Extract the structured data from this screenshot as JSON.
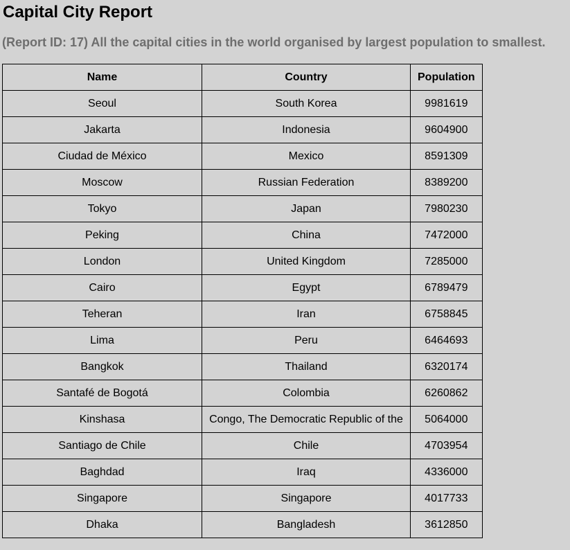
{
  "page": {
    "title": "Capital City Report",
    "subtitle": "(Report ID: 17) All the capital cities in the world organised by largest population to smallest."
  },
  "table": {
    "headers": [
      "Name",
      "Country",
      "Population"
    ],
    "rows": [
      [
        "Seoul",
        "South Korea",
        "9981619"
      ],
      [
        "Jakarta",
        "Indonesia",
        "9604900"
      ],
      [
        "Ciudad de México",
        "Mexico",
        "8591309"
      ],
      [
        "Moscow",
        "Russian Federation",
        "8389200"
      ],
      [
        "Tokyo",
        "Japan",
        "7980230"
      ],
      [
        "Peking",
        "China",
        "7472000"
      ],
      [
        "London",
        "United Kingdom",
        "7285000"
      ],
      [
        "Cairo",
        "Egypt",
        "6789479"
      ],
      [
        "Teheran",
        "Iran",
        "6758845"
      ],
      [
        "Lima",
        "Peru",
        "6464693"
      ],
      [
        "Bangkok",
        "Thailand",
        "6320174"
      ],
      [
        "Santafé de Bogotá",
        "Colombia",
        "6260862"
      ],
      [
        "Kinshasa",
        "Congo, The Democratic Republic of the",
        "5064000"
      ],
      [
        "Santiago de Chile",
        "Chile",
        "4703954"
      ],
      [
        "Baghdad",
        "Iraq",
        "4336000"
      ],
      [
        "Singapore",
        "Singapore",
        "4017733"
      ],
      [
        "Dhaka",
        "Bangladesh",
        "3612850"
      ]
    ]
  }
}
